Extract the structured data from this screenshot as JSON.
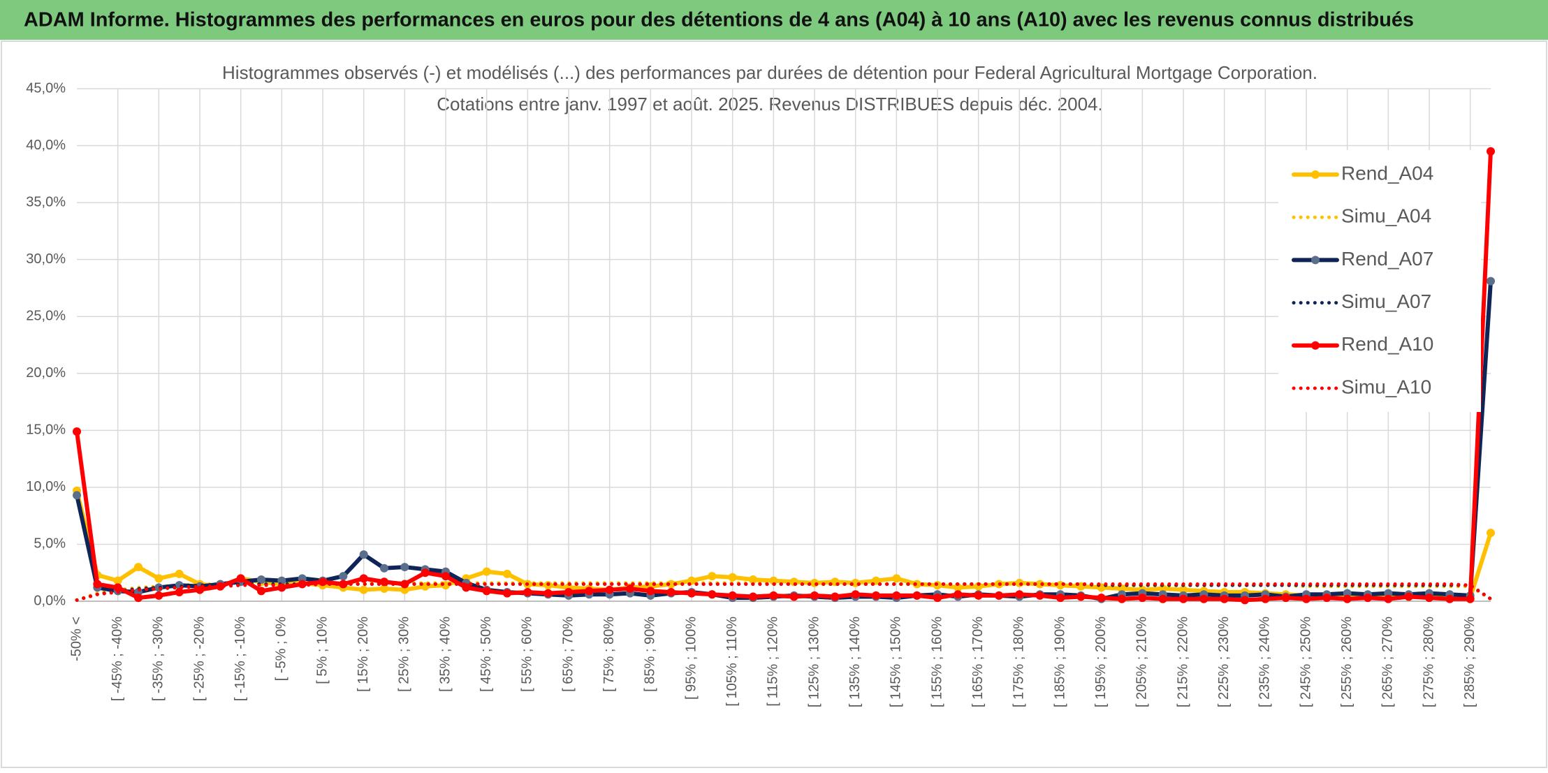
{
  "header": {
    "title": "ADAM Informe. Histogrammes des performances en euros pour des détentions de 4 ans (A04) à 10 ans (A10) avec les revenus connus distribués"
  },
  "chart_data": {
    "type": "line",
    "title": [
      "Histogrammes observés (-) et modélisés (...) des performances par durées de détention pour Federal Agricultural Mortgage Corporation.",
      "Cotations entre janv. 1997 et août. 2025. Revenus DISTRIBUES depuis déc. 2004."
    ],
    "categories": [
      "-50% <",
      null,
      "[ -45% ; -40%",
      null,
      "[ -35% ; -30%",
      null,
      "[ -25% ; -20%",
      null,
      "[ -15% ; -10%",
      null,
      "[ -5% ; 0%",
      null,
      "[ 5% ; 10%",
      null,
      "[ 15% ; 20%",
      null,
      "[ 25% ; 30%",
      null,
      "[ 35% ; 40%",
      null,
      "[ 45% ; 50%",
      null,
      "[ 55% ; 60%",
      null,
      "[ 65% ; 70%",
      null,
      "[ 75% ; 80%",
      null,
      "[ 85% ; 90%",
      null,
      "[ 95% ; 100%",
      null,
      "[ 105% ; 110%",
      null,
      "[ 115% ; 120%",
      null,
      "[ 125% ; 130%",
      null,
      "[ 135% ; 140%",
      null,
      "[ 145% ; 150%",
      null,
      "[ 155% ; 160%",
      null,
      "[ 165% ; 170%",
      null,
      "[ 175% ; 180%",
      null,
      "[ 185% ; 190%",
      null,
      "[ 195% ; 200%",
      null,
      "[ 205% ; 210%",
      null,
      "[ 215% ; 220%",
      null,
      "[ 225% ; 230%",
      null,
      "[ 235% ; 240%",
      null,
      "[ 245% ; 250%",
      null,
      "[ 255% ; 260%",
      null,
      "[ 265% ; 270%",
      null,
      "[ 275% ; 280%",
      null,
      "[ 285% ; 290%",
      null
    ],
    "ylim": [
      0,
      45
    ],
    "yticks": [
      {
        "value": 0,
        "label": "0,0%"
      },
      {
        "value": 5,
        "label": "5,0%"
      },
      {
        "value": 10,
        "label": "10,0%"
      },
      {
        "value": 15,
        "label": "15,0%"
      },
      {
        "value": 20,
        "label": "20,0%"
      },
      {
        "value": 25,
        "label": "25,0%"
      },
      {
        "value": 30,
        "label": "30,0%"
      },
      {
        "value": 35,
        "label": "35,0%"
      },
      {
        "value": 40,
        "label": "40,0%"
      },
      {
        "value": 45,
        "label": "45,0%"
      }
    ],
    "grid": true,
    "legend": "right",
    "series": [
      {
        "name": "Rend_A04",
        "color": "#ffc000",
        "style": "solid",
        "marker": true,
        "values": [
          9.7,
          2.3,
          1.8,
          3.0,
          2.0,
          2.4,
          1.5,
          1.3,
          2.0,
          1.7,
          1.5,
          1.6,
          1.4,
          1.2,
          1.0,
          1.1,
          1.0,
          1.3,
          1.4,
          2.0,
          2.6,
          2.4,
          1.5,
          1.4,
          1.2,
          1.1,
          1.0,
          1.2,
          1.3,
          1.5,
          1.8,
          2.2,
          2.1,
          1.9,
          1.8,
          1.7,
          1.6,
          1.7,
          1.6,
          1.8,
          2.0,
          1.5,
          1.4,
          1.2,
          1.3,
          1.5,
          1.6,
          1.5,
          1.4,
          1.3,
          1.2,
          1.1,
          1.0,
          1.1,
          1.0,
          0.9,
          0.8,
          0.8,
          0.7,
          0.6,
          0.5,
          0.5,
          0.5,
          0.4,
          0.5,
          0.4,
          0.4,
          0.4,
          0.3,
          6.0
        ]
      },
      {
        "name": "Simu_A04",
        "color": "#ffc000",
        "style": "dotted",
        "marker": false,
        "values": [
          0.1,
          0.7,
          1.0,
          1.2,
          1.3,
          1.4,
          1.5,
          1.5,
          1.6,
          1.6,
          1.6,
          1.6,
          1.6,
          1.6,
          1.6,
          1.6,
          1.6,
          1.6,
          1.6,
          1.6,
          1.6,
          1.6,
          1.6,
          1.6,
          1.6,
          1.6,
          1.6,
          1.6,
          1.6,
          1.6,
          1.6,
          1.6,
          1.6,
          1.6,
          1.6,
          1.5,
          1.5,
          1.5,
          1.5,
          1.5,
          1.5,
          1.5,
          1.5,
          1.5,
          1.5,
          1.5,
          1.5,
          1.5,
          1.5,
          1.5,
          1.4,
          1.4,
          1.4,
          1.4,
          1.4,
          1.4,
          1.4,
          1.4,
          1.4,
          1.4,
          1.3,
          1.3,
          1.3,
          1.3,
          1.3,
          1.3,
          1.3,
          1.3,
          1.3,
          0.2
        ]
      },
      {
        "name": "Rend_A07",
        "color": "#0f2557",
        "marker_color": "#5b6e8c",
        "style": "solid",
        "marker": true,
        "values": [
          9.3,
          1.2,
          0.9,
          0.8,
          1.2,
          1.4,
          1.3,
          1.5,
          1.7,
          1.9,
          1.8,
          2.0,
          1.8,
          2.2,
          4.1,
          2.9,
          3.0,
          2.8,
          2.6,
          1.6,
          1.0,
          0.8,
          0.7,
          0.6,
          0.5,
          0.6,
          0.6,
          0.7,
          0.5,
          0.7,
          0.8,
          0.6,
          0.3,
          0.3,
          0.4,
          0.5,
          0.4,
          0.3,
          0.4,
          0.4,
          0.3,
          0.5,
          0.6,
          0.4,
          0.6,
          0.5,
          0.4,
          0.6,
          0.6,
          0.5,
          0.2,
          0.6,
          0.7,
          0.6,
          0.5,
          0.6,
          0.5,
          0.5,
          0.6,
          0.4,
          0.6,
          0.6,
          0.7,
          0.6,
          0.7,
          0.6,
          0.7,
          0.6,
          0.5,
          28.1
        ]
      },
      {
        "name": "Simu_A07",
        "color": "#0f2557",
        "style": "dotted",
        "marker": false,
        "values": [
          0.1,
          0.6,
          0.9,
          1.1,
          1.2,
          1.3,
          1.4,
          1.4,
          1.5,
          1.5,
          1.5,
          1.5,
          1.5,
          1.5,
          1.5,
          1.5,
          1.5,
          1.5,
          1.5,
          1.5,
          1.5,
          1.5,
          1.5,
          1.5,
          1.5,
          1.5,
          1.5,
          1.5,
          1.5,
          1.5,
          1.5,
          1.5,
          1.5,
          1.5,
          1.5,
          1.5,
          1.5,
          1.5,
          1.5,
          1.5,
          1.5,
          1.5,
          1.5,
          1.5,
          1.5,
          1.5,
          1.5,
          1.5,
          1.5,
          1.5,
          1.4,
          1.4,
          1.4,
          1.4,
          1.4,
          1.4,
          1.4,
          1.4,
          1.4,
          1.4,
          1.4,
          1.4,
          1.4,
          1.4,
          1.4,
          1.4,
          1.4,
          1.4,
          1.4,
          0.2
        ]
      },
      {
        "name": "Rend_A10",
        "color": "#ff0000",
        "style": "solid",
        "marker": true,
        "values": [
          14.9,
          1.5,
          1.2,
          0.3,
          0.5,
          0.8,
          1.0,
          1.3,
          2.0,
          0.9,
          1.2,
          1.5,
          1.7,
          1.5,
          2.0,
          1.7,
          1.5,
          2.5,
          2.2,
          1.2,
          0.9,
          0.7,
          0.8,
          0.7,
          0.8,
          0.9,
          1.0,
          1.1,
          0.9,
          0.8,
          0.7,
          0.6,
          0.5,
          0.4,
          0.5,
          0.4,
          0.5,
          0.4,
          0.6,
          0.5,
          0.5,
          0.5,
          0.3,
          0.6,
          0.5,
          0.5,
          0.6,
          0.5,
          0.3,
          0.4,
          0.3,
          0.2,
          0.3,
          0.2,
          0.2,
          0.2,
          0.2,
          0.1,
          0.2,
          0.3,
          0.2,
          0.3,
          0.2,
          0.3,
          0.2,
          0.4,
          0.3,
          0.2,
          0.2,
          39.5
        ]
      },
      {
        "name": "Simu_A10",
        "color": "#ff0000",
        "style": "dotted",
        "marker": false,
        "values": [
          0.1,
          0.6,
          0.8,
          1.0,
          1.1,
          1.2,
          1.3,
          1.3,
          1.4,
          1.4,
          1.4,
          1.4,
          1.5,
          1.5,
          1.5,
          1.5,
          1.5,
          1.5,
          1.5,
          1.5,
          1.5,
          1.5,
          1.5,
          1.5,
          1.5,
          1.5,
          1.5,
          1.5,
          1.5,
          1.5,
          1.5,
          1.5,
          1.5,
          1.5,
          1.5,
          1.5,
          1.5,
          1.5,
          1.5,
          1.5,
          1.5,
          1.5,
          1.5,
          1.5,
          1.5,
          1.5,
          1.5,
          1.5,
          1.5,
          1.5,
          1.5,
          1.5,
          1.5,
          1.5,
          1.5,
          1.5,
          1.5,
          1.5,
          1.5,
          1.5,
          1.5,
          1.5,
          1.5,
          1.5,
          1.5,
          1.5,
          1.5,
          1.5,
          1.4,
          0.2
        ]
      }
    ]
  }
}
